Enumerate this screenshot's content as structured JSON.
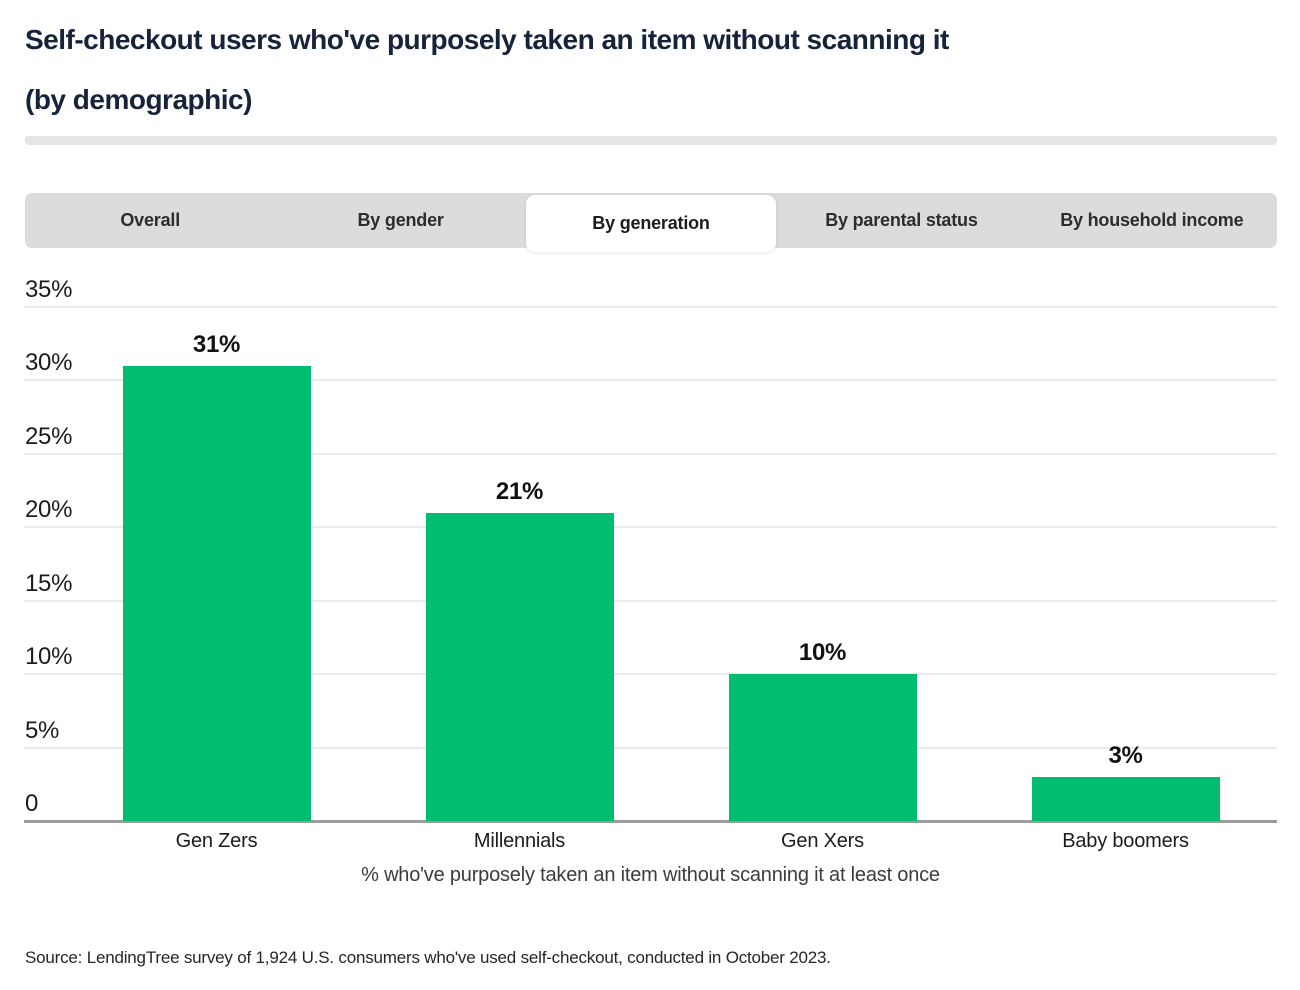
{
  "header": {
    "title_line1": "Self-checkout users who've purposely taken an item without scanning it",
    "title_line2": "(by demographic)"
  },
  "tabs": {
    "items": [
      {
        "label": "Overall",
        "active": false
      },
      {
        "label": "By gender",
        "active": false
      },
      {
        "label": "By generation",
        "active": true
      },
      {
        "label": "By parental status",
        "active": false
      },
      {
        "label": "By household income",
        "active": false
      }
    ]
  },
  "chart_data": {
    "type": "bar",
    "title": "Self-checkout users who've purposely taken an item without scanning it (by demographic)",
    "categories": [
      "Gen Zers",
      "Millennials",
      "Gen Xers",
      "Baby boomers"
    ],
    "values": [
      31,
      21,
      10,
      3
    ],
    "value_labels": [
      "31%",
      "21%",
      "10%",
      "3%"
    ],
    "xlabel": "% who've purposely taken an item without scanning it at least once",
    "ylabel": "",
    "ylim": [
      0,
      35
    ],
    "grid": true,
    "legend": "none",
    "y_ticks": [
      {
        "value": 0,
        "label": "0"
      },
      {
        "value": 5,
        "label": "5%"
      },
      {
        "value": 10,
        "label": "10%"
      },
      {
        "value": 15,
        "label": "15%"
      },
      {
        "value": 20,
        "label": "20%"
      },
      {
        "value": 25,
        "label": "25%"
      },
      {
        "value": 30,
        "label": "30%"
      },
      {
        "value": 35,
        "label": "35%"
      }
    ],
    "bar_color": "#00bd71"
  },
  "source": {
    "text": "Source: LendingTree survey of 1,924 U.S. consumers who've used self-checkout, conducted in October 2023."
  },
  "colors": {
    "accent_green": "#00bd71",
    "title_text": "#17233b",
    "tab_bar_bg": "#dcdcdc",
    "active_tab_bg": "#ffffff",
    "divider": "#e5e5e5",
    "gridline": "#eaeaea",
    "axis_line": "#9c9c9c"
  }
}
